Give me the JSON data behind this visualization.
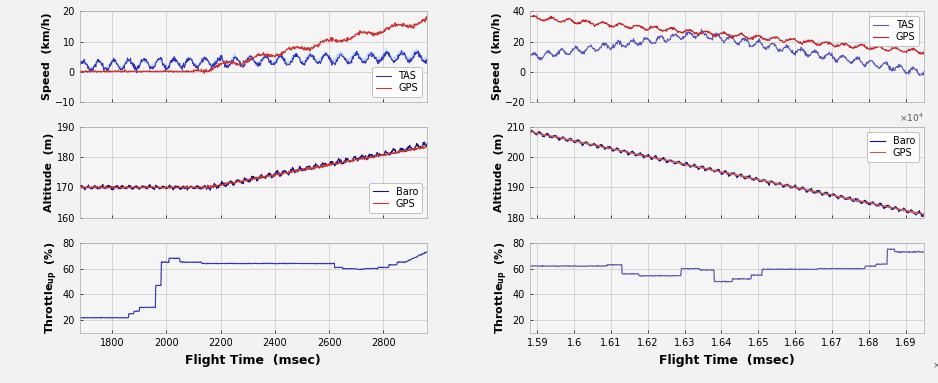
{
  "left": {
    "x_range": [
      1680,
      2960
    ],
    "x_ticks": [
      1800,
      2000,
      2200,
      2400,
      2600,
      2800
    ],
    "xlabel": "Flight Time (msec)",
    "speed": {
      "ylim": [
        -10,
        20
      ],
      "yticks": [
        -10,
        0,
        10,
        20
      ],
      "ylabel": "Speed  (km/h)"
    },
    "altitude": {
      "ylim": [
        160,
        190
      ],
      "yticks": [
        160,
        170,
        180,
        190
      ],
      "ylabel": "Altitude  (m)"
    },
    "throttle": {
      "ylim": [
        10,
        80
      ],
      "yticks": [
        20,
        40,
        60,
        80
      ]
    }
  },
  "right": {
    "x_range": [
      15880,
      16950
    ],
    "x_ticks": [
      1.59,
      1.6,
      1.61,
      1.62,
      1.63,
      1.64,
      1.65,
      1.66,
      1.67,
      1.68,
      1.69
    ],
    "x_scale": 10000,
    "xlabel": "Flight Time  (msec)",
    "speed": {
      "ylim": [
        -20,
        40
      ],
      "yticks": [
        -20,
        0,
        20,
        40
      ],
      "ylabel": "Speed  (km/h)"
    },
    "altitude": {
      "ylim": [
        180,
        210
      ],
      "yticks": [
        180,
        190,
        200,
        210
      ],
      "ylabel": "Altitude  (m)"
    },
    "throttle": {
      "ylim": [
        10,
        80
      ],
      "yticks": [
        20,
        40,
        60,
        80
      ]
    }
  },
  "bg_color": "#ffffff",
  "grid_color": "#d8d8d8",
  "label_fontsize": 8,
  "tick_fontsize": 7
}
